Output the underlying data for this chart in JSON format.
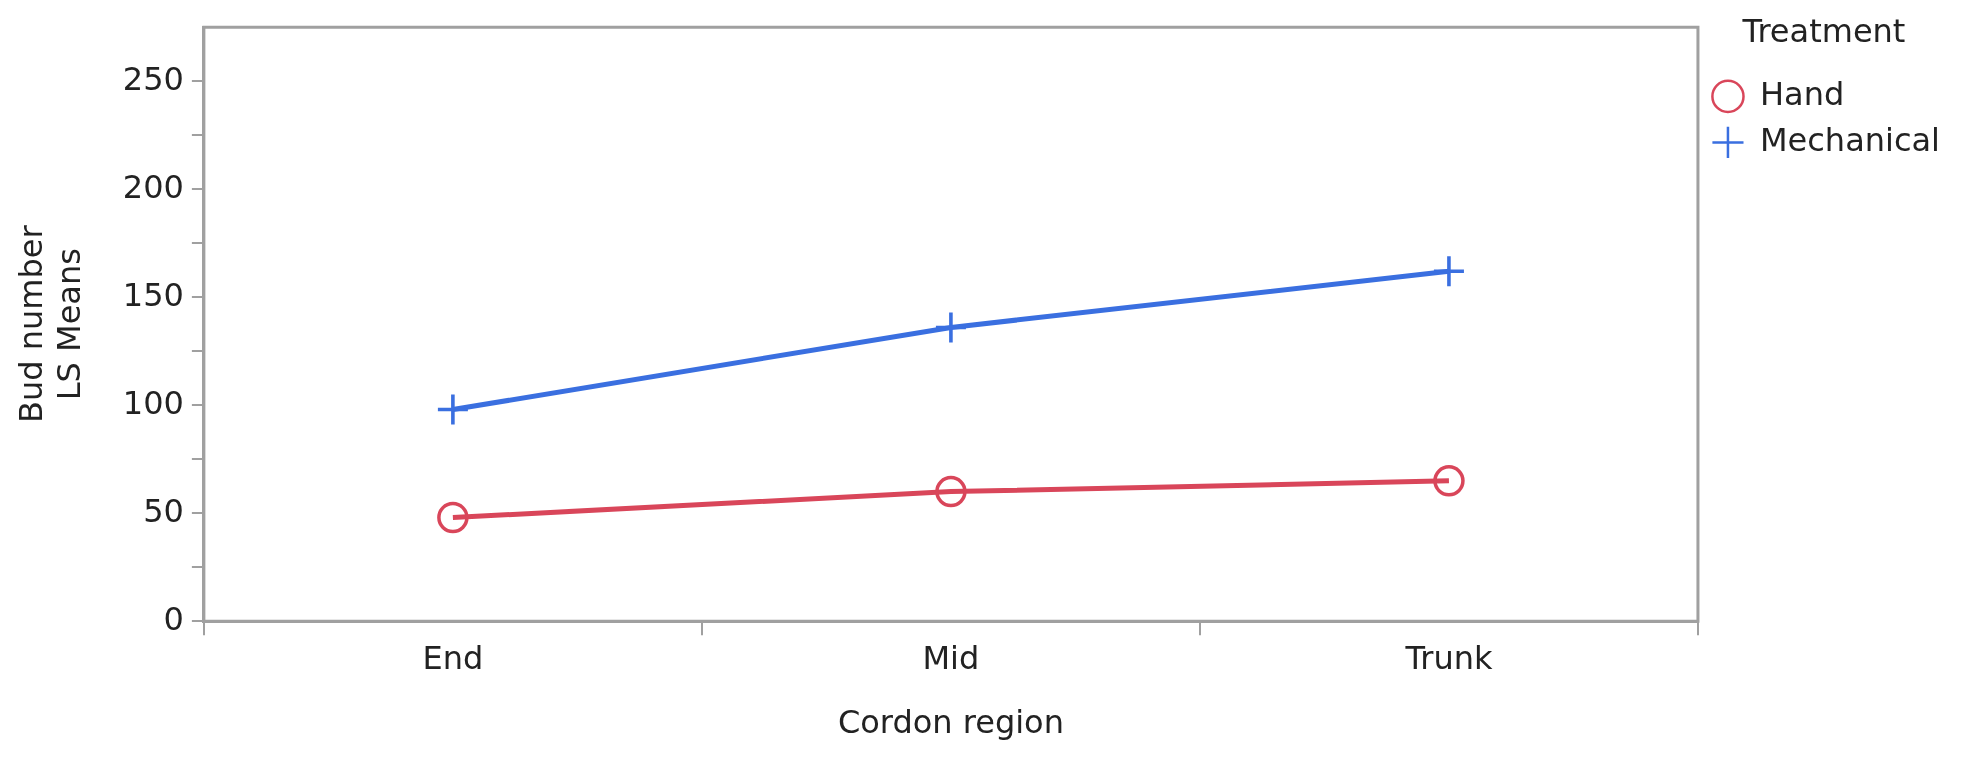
{
  "chart_data": {
    "type": "line",
    "xlabel": "Cordon region",
    "ylabel": "Bud number\nLS Means",
    "legend_title": "Treatment",
    "legend": "right",
    "categories": [
      "End",
      "Mid",
      "Trunk"
    ],
    "series": [
      {
        "name": "Hand",
        "color": "#d9465a",
        "marker": "circle",
        "values": [
          48,
          60,
          65
        ]
      },
      {
        "name": "Mechanical",
        "color": "#3a6fe0",
        "marker": "cross",
        "values": [
          98,
          136,
          162
        ]
      }
    ],
    "ylim": [
      0,
      275
    ],
    "yticks": [
      0,
      {
        "value": 25,
        "label": null
      },
      50,
      {
        "value": 75,
        "label": null
      },
      100,
      {
        "value": 125,
        "label": null
      },
      150,
      {
        "value": 175,
        "label": null
      },
      200,
      {
        "value": 225,
        "label": null
      },
      250
    ],
    "grid": false
  }
}
